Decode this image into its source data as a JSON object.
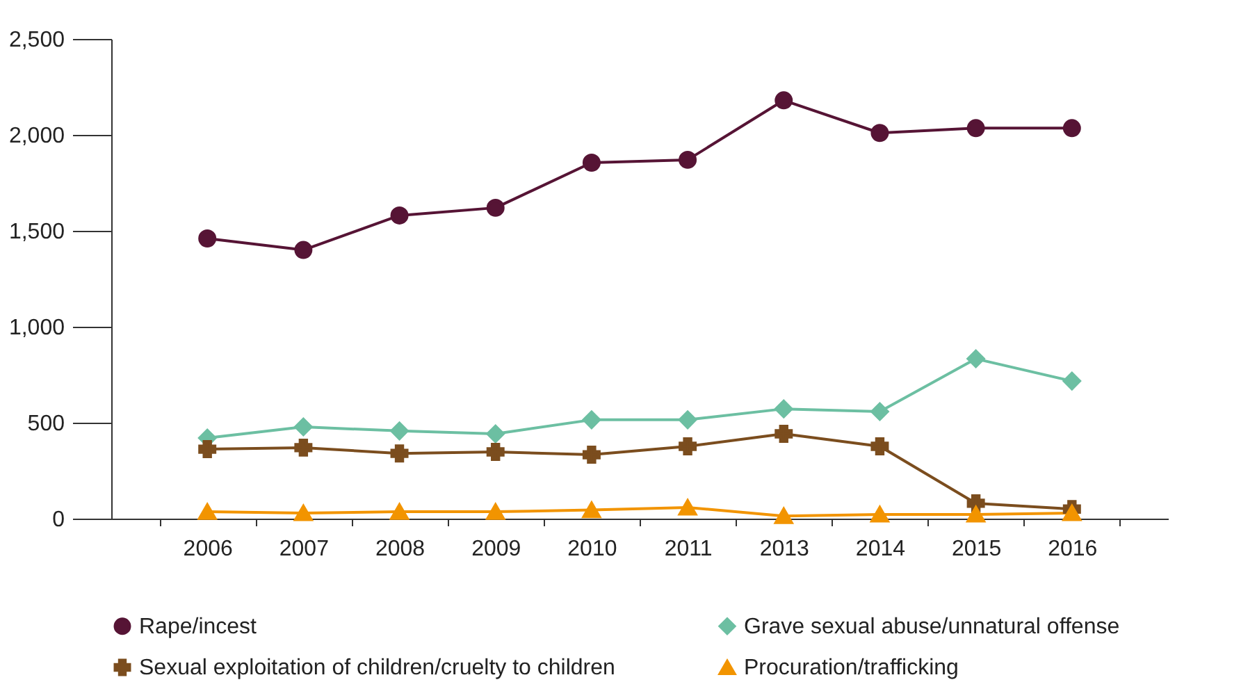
{
  "chart_data": {
    "type": "line",
    "categories": [
      "2006",
      "2007",
      "2008",
      "2009",
      "2010",
      "2011",
      "2013",
      "2014",
      "2015",
      "2016"
    ],
    "ylim": [
      0,
      2500
    ],
    "yticks": [
      0,
      500,
      {
        "value": 1000,
        "label": "1,000"
      },
      {
        "value": 1500,
        "label": "1,500"
      },
      {
        "value": 2000,
        "label": "2,000"
      },
      {
        "value": 2500,
        "label": "2,500"
      }
    ],
    "grid": false,
    "legend": "bottom",
    "series": [
      {
        "name": "Rape/incest",
        "color": "#561435",
        "marker": "circle",
        "values": [
          1460,
          1400,
          1580,
          1620,
          1855,
          1870,
          2180,
          2010,
          2035,
          2035
        ]
      },
      {
        "name": "Grave sexual abuse/unnatural offense",
        "color": "#6cbfa2",
        "marker": "diamond",
        "values": [
          420,
          478,
          457,
          442,
          515,
          515,
          572,
          558,
          833,
          717
        ]
      },
      {
        "name": "Sexual exploitation of children/cruelty to children",
        "color": "#7b4d1e",
        "marker": "cross",
        "values": [
          362,
          370,
          340,
          348,
          333,
          377,
          442,
          377,
          80,
          50
        ]
      },
      {
        "name": "Procuration/trafficking",
        "color": "#f29400",
        "marker": "triangle",
        "values": [
          36,
          29,
          36,
          36,
          45,
          58,
          14,
          22,
          22,
          29
        ]
      }
    ]
  }
}
